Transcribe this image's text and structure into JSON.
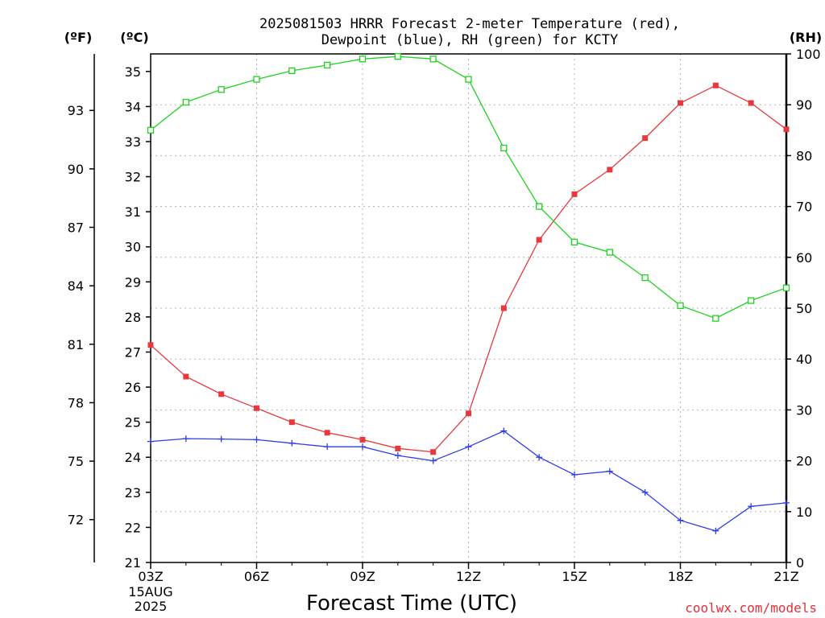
{
  "chart_data": {
    "type": "line",
    "title": "2025081503 HRRR Forecast 2-meter Temperature (red),",
    "subtitle": "Dewpoint (blue), RH (green) for KCTY",
    "xlabel": "Forecast Time (UTC)",
    "x_date_lines": [
      "15AUG",
      "2025"
    ],
    "credit": "coolwx.com/models",
    "units": {
      "fahrenheit": "(ºF)",
      "celsius": "(ºC)",
      "rh": "(RH)"
    },
    "grid": true,
    "x_hours": [
      3,
      4,
      5,
      6,
      7,
      8,
      9,
      10,
      11,
      12,
      13,
      14,
      15,
      16,
      17,
      18,
      19,
      20,
      21
    ],
    "x_ticks": [
      {
        "hour": 3,
        "label": "03Z"
      },
      {
        "hour": 6,
        "label": "06Z"
      },
      {
        "hour": 9,
        "label": "09Z"
      },
      {
        "hour": 12,
        "label": "12Z"
      },
      {
        "hour": 15,
        "label": "15Z"
      },
      {
        "hour": 18,
        "label": "18Z"
      },
      {
        "hour": 21,
        "label": "21Z"
      }
    ],
    "y_celsius": {
      "min": 21,
      "max": 35.5,
      "ticks": [
        21,
        22,
        23,
        24,
        25,
        26,
        27,
        28,
        29,
        30,
        31,
        32,
        33,
        34,
        35
      ]
    },
    "y_fahrenheit": {
      "ticks": [
        72,
        75,
        78,
        81,
        84,
        87,
        90,
        93
      ]
    },
    "y_rh": {
      "min": 0,
      "max": 100,
      "ticks": [
        0,
        10,
        20,
        30,
        40,
        50,
        60,
        70,
        80,
        90,
        100
      ]
    },
    "series": [
      {
        "name": "Temperature",
        "axis": "celsius",
        "color": "#e8383d",
        "marker": "filled-square",
        "values": [
          27.2,
          26.3,
          25.8,
          25.4,
          25.0,
          24.7,
          24.5,
          24.25,
          24.15,
          25.25,
          28.25,
          30.2,
          31.5,
          32.2,
          33.1,
          34.1,
          34.6,
          34.1,
          33.35
        ]
      },
      {
        "name": "Dewpoint",
        "axis": "celsius",
        "color": "#2f3fe6",
        "marker": "plus",
        "values": [
          24.45,
          24.53,
          24.52,
          24.5,
          24.4,
          24.3,
          24.3,
          24.05,
          23.9,
          24.3,
          24.75,
          24.0,
          23.5,
          23.6,
          23.0,
          22.2,
          21.9,
          22.6,
          22.7
        ]
      },
      {
        "name": "RH",
        "axis": "rh",
        "color": "#1fd21f",
        "marker": "open-square",
        "values": [
          85,
          90.5,
          93,
          95,
          96.7,
          97.8,
          99,
          99.5,
          99,
          95,
          81.5,
          70,
          63,
          61,
          56,
          50.5,
          48,
          51.5,
          54
        ]
      }
    ]
  }
}
